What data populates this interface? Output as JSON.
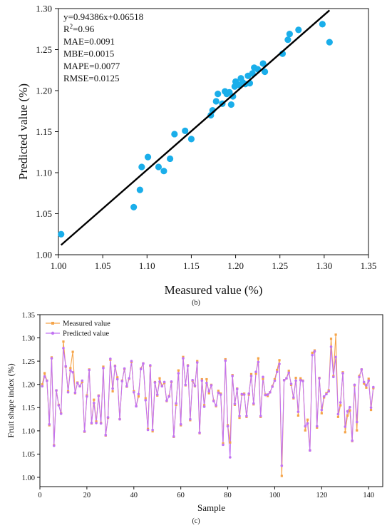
{
  "chart_data": [
    {
      "type": "scatter",
      "panel_label": "(b)",
      "xlabel": "Measured value (%)",
      "ylabel": "Predicted value (%)",
      "xlim": [
        1.0,
        1.35
      ],
      "ylim": [
        1.0,
        1.3
      ],
      "xticks": [
        "1.00",
        "1.05",
        "1.10",
        "1.15",
        "1.20",
        "1.25",
        "1.30",
        "1.35"
      ],
      "yticks": [
        "1.00",
        "1.05",
        "1.10",
        "1.15",
        "1.20",
        "1.25",
        "1.30"
      ],
      "grid": false,
      "annotations": [
        "y=0.94386x+0.06518",
        "R2=0.96",
        "MAE=0.0091",
        "MBE=0.0015",
        "MAPE=0.0077",
        "RMSE=0.0125"
      ],
      "fit_line": {
        "slope": 0.94386,
        "intercept": 0.06518,
        "x_range": [
          1.003,
          1.306
        ],
        "color": "#000000"
      },
      "point_color": "#1aaeea",
      "points": [
        [
          1.003,
          1.025
        ],
        [
          1.085,
          1.058
        ],
        [
          1.092,
          1.079
        ],
        [
          1.094,
          1.107
        ],
        [
          1.101,
          1.119
        ],
        [
          1.113,
          1.107
        ],
        [
          1.119,
          1.102
        ],
        [
          1.126,
          1.117
        ],
        [
          1.131,
          1.147
        ],
        [
          1.143,
          1.151
        ],
        [
          1.15,
          1.141
        ],
        [
          1.172,
          1.17
        ],
        [
          1.174,
          1.176
        ],
        [
          1.178,
          1.187
        ],
        [
          1.18,
          1.196
        ],
        [
          1.185,
          1.184
        ],
        [
          1.188,
          1.199
        ],
        [
          1.19,
          1.196
        ],
        [
          1.193,
          1.198
        ],
        [
          1.195,
          1.183
        ],
        [
          1.197,
          1.193
        ],
        [
          1.199,
          1.205
        ],
        [
          1.2,
          1.211
        ],
        [
          1.204,
          1.207
        ],
        [
          1.206,
          1.215
        ],
        [
          1.208,
          1.21
        ],
        [
          1.211,
          1.208
        ],
        [
          1.214,
          1.218
        ],
        [
          1.216,
          1.209
        ],
        [
          1.219,
          1.221
        ],
        [
          1.221,
          1.228
        ],
        [
          1.225,
          1.226
        ],
        [
          1.231,
          1.233
        ],
        [
          1.233,
          1.223
        ],
        [
          1.253,
          1.245
        ],
        [
          1.259,
          1.262
        ],
        [
          1.261,
          1.269
        ],
        [
          1.271,
          1.274
        ],
        [
          1.298,
          1.281
        ],
        [
          1.306,
          1.259
        ]
      ]
    },
    {
      "type": "line",
      "panel_label": "(c)",
      "xlabel": "Sample",
      "ylabel": "Fruit shape index (%)",
      "xlim": [
        0,
        146
      ],
      "ylim": [
        0.98,
        1.35
      ],
      "xticks": [
        "0",
        "20",
        "40",
        "60",
        "80",
        "100",
        "120",
        "140"
      ],
      "yticks": [
        "1.00",
        "1.05",
        "1.10",
        "1.15",
        "1.20",
        "1.25",
        "1.30",
        "1.35"
      ],
      "grid": false,
      "legend_position": "top-left",
      "series": [
        {
          "name": "Measured value",
          "color": "#f5a54a",
          "values": [
            1.2,
            1.224,
            1.208,
            1.112,
            1.258,
            1.069,
            1.187,
            1.156,
            1.138,
            1.292,
            1.238,
            1.185,
            1.235,
            1.27,
            1.181,
            1.204,
            1.196,
            1.205,
            1.098,
            1.176,
            1.232,
            1.116,
            1.167,
            1.12,
            1.176,
            1.117,
            1.238,
            1.09,
            1.128,
            1.253,
            1.185,
            1.24,
            1.215,
            1.125,
            1.208,
            1.233,
            1.195,
            1.212,
            1.248,
            1.185,
            1.153,
            1.174,
            1.234,
            1.245,
            1.17,
            1.104,
            1.24,
            1.099,
            1.205,
            1.176,
            1.213,
            1.197,
            1.203,
            1.164,
            1.175,
            1.205,
            1.087,
            1.156,
            1.23,
            1.112,
            1.259,
            1.198,
            1.241,
            1.123,
            1.208,
            1.196,
            1.25,
            1.095,
            1.211,
            1.155,
            1.211,
            1.181,
            1.199,
            1.165,
            1.153,
            1.186,
            1.18,
            1.073,
            1.254,
            1.112,
            1.075,
            1.22,
            1.156,
            1.191,
            1.128,
            1.178,
            1.18,
            1.13,
            1.178,
            1.222,
            1.157,
            1.223,
            1.256,
            1.13,
            1.212,
            1.178,
            1.175,
            1.183,
            1.196,
            1.211,
            1.231,
            1.252,
            1.003,
            1.209,
            1.213,
            1.229,
            1.199,
            1.17,
            1.214,
            1.133,
            1.213,
            1.208,
            1.101,
            1.124,
            1.058,
            1.268,
            1.273,
            1.107,
            1.214,
            1.138,
            1.172,
            1.181,
            1.187,
            1.298,
            1.218,
            1.307,
            1.13,
            1.155,
            1.226,
            1.097,
            1.133,
            1.144,
            1.078,
            1.198,
            1.101,
            1.218,
            1.232,
            1.202,
            1.193,
            1.212,
            1.145,
            1.192
          ]
        },
        {
          "name": "Predicted value",
          "color": "#c273f2",
          "values": [
            1.196,
            1.217,
            1.208,
            1.114,
            1.256,
            1.068,
            1.187,
            1.155,
            1.137,
            1.278,
            1.239,
            1.183,
            1.23,
            1.226,
            1.182,
            1.203,
            1.196,
            1.208,
            1.099,
            1.174,
            1.231,
            1.117,
            1.16,
            1.117,
            1.175,
            1.116,
            1.235,
            1.091,
            1.129,
            1.255,
            1.191,
            1.239,
            1.211,
            1.125,
            1.207,
            1.234,
            1.196,
            1.213,
            1.25,
            1.183,
            1.153,
            1.179,
            1.233,
            1.245,
            1.166,
            1.102,
            1.241,
            1.102,
            1.204,
            1.178,
            1.206,
            1.196,
            1.205,
            1.165,
            1.174,
            1.206,
            1.088,
            1.159,
            1.224,
            1.114,
            1.256,
            1.199,
            1.24,
            1.125,
            1.209,
            1.197,
            1.247,
            1.096,
            1.208,
            1.152,
            1.203,
            1.185,
            1.198,
            1.164,
            1.155,
            1.182,
            1.178,
            1.07,
            1.251,
            1.11,
            1.043,
            1.218,
            1.158,
            1.19,
            1.132,
            1.179,
            1.178,
            1.132,
            1.18,
            1.218,
            1.159,
            1.227,
            1.248,
            1.132,
            1.216,
            1.177,
            1.178,
            1.183,
            1.195,
            1.208,
            1.227,
            1.244,
            1.025,
            1.209,
            1.213,
            1.225,
            1.201,
            1.172,
            1.208,
            1.141,
            1.209,
            1.207,
            1.11,
            1.116,
            1.058,
            1.263,
            1.271,
            1.11,
            1.213,
            1.145,
            1.174,
            1.179,
            1.185,
            1.281,
            1.216,
            1.259,
            1.136,
            1.161,
            1.224,
            1.109,
            1.142,
            1.151,
            1.079,
            1.199,
            1.119,
            1.216,
            1.232,
            1.205,
            1.198,
            1.208,
            1.15,
            1.194
          ]
        }
      ]
    }
  ]
}
